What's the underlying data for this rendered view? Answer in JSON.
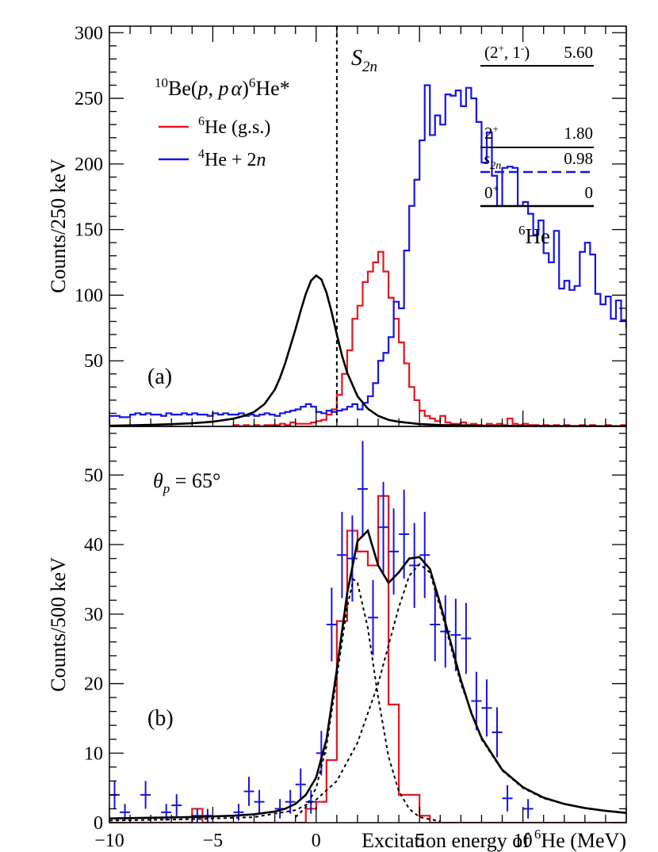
{
  "chart_data": [
    {
      "panel": "a",
      "type": "line",
      "panel_label": "(a)",
      "title": "",
      "reaction": {
        "pre": "10",
        "base1": "Be(",
        "p1": "p",
        "comma": ", ",
        "p2": "p",
        "alpha": "α",
        "close": ")",
        "sup6": "6",
        "tail": "He*"
      },
      "xlabel": "",
      "ylabel": "Counts/250 keV",
      "xlim": [
        -10,
        15
      ],
      "ylim": [
        0,
        305
      ],
      "y_ticks": [
        50,
        100,
        150,
        200,
        250,
        300
      ],
      "threshold": {
        "x": 1.0,
        "label_main": "S",
        "label_sub": "2n"
      },
      "legend": [
        {
          "sup": "6",
          "main": "He (g.s.)",
          "em": "",
          "color": "#e8141c"
        },
        {
          "sup": "4",
          "main": "He + 2",
          "em": "n",
          "color": "#1414e6"
        }
      ],
      "series": [
        {
          "name": "6He (g.s.)",
          "style": "step",
          "color": "#e8141c",
          "bin_width": 0.25,
          "x_start": -4.0,
          "values": [
            1,
            0,
            1,
            0,
            1,
            0,
            1,
            1,
            1,
            2,
            1,
            3,
            2,
            2,
            2,
            3,
            4,
            5,
            9,
            13,
            24,
            40,
            58,
            82,
            92,
            110,
            118,
            125,
            133,
            118,
            98,
            82,
            64,
            48,
            30,
            20,
            12,
            8,
            6,
            4,
            8,
            3,
            2,
            2,
            3,
            1,
            2,
            1,
            0,
            2,
            1,
            2,
            1,
            6,
            2,
            1,
            2,
            1,
            1,
            0,
            1,
            0,
            1,
            0,
            1,
            0,
            0,
            1,
            0,
            1,
            0,
            0,
            1,
            0,
            0,
            1,
            0
          ]
        },
        {
          "name": "4He + 2n",
          "style": "step",
          "color": "#1414e6",
          "bin_width": 0.25,
          "x_start": -10.0,
          "values": [
            8,
            8,
            7,
            7,
            9,
            10,
            9,
            10,
            9,
            9,
            8,
            10,
            9,
            9,
            10,
            9,
            10,
            9,
            9,
            8,
            10,
            9,
            10,
            9,
            9,
            10,
            8,
            9,
            8,
            9,
            10,
            9,
            8,
            10,
            11,
            12,
            13,
            15,
            17,
            15,
            11,
            10,
            12,
            11,
            12,
            13,
            15,
            17,
            13,
            18,
            23,
            33,
            50,
            56,
            68,
            95,
            90,
            134,
            168,
            188,
            218,
            260,
            222,
            237,
            230,
            253,
            252,
            256,
            244,
            258,
            250,
            232,
            201,
            224,
            191,
            168,
            197,
            198,
            197,
            168,
            171,
            162,
            146,
            157,
            132,
            125,
            149,
            105,
            111,
            104,
            107,
            133,
            140,
            131,
            101,
            93,
            99,
            82,
            96,
            81,
            75,
            66,
            65,
            60,
            62,
            62,
            61,
            58,
            55,
            60,
            54,
            68,
            55,
            55,
            50,
            48,
            46,
            42,
            42,
            40,
            42,
            47,
            45,
            33,
            40,
            32,
            35,
            28,
            30,
            27,
            25,
            25,
            28,
            18,
            15,
            18
          ]
        },
        {
          "name": "fit",
          "style": "line",
          "color": "#000000",
          "x": [
            -10,
            -9,
            -8,
            -7,
            -6,
            -5,
            -4,
            -3.5,
            -3,
            -2.5,
            -2,
            -1.75,
            -1.5,
            -1.25,
            -1,
            -0.75,
            -0.5,
            -0.25,
            0,
            0.25,
            0.5,
            0.75,
            1,
            1.25,
            1.5,
            2,
            2.5,
            3,
            3.5,
            4,
            5,
            6,
            8,
            10,
            12,
            15
          ],
          "y": [
            0.5,
            0.8,
            1.2,
            1.7,
            2.4,
            3.6,
            5.9,
            8.0,
            11.0,
            17.0,
            28.0,
            37.0,
            48.0,
            61.0,
            74.0,
            88.0,
            101.0,
            111.0,
            115.0,
            112.0,
            102.0,
            87.0,
            70.0,
            54.0,
            41.0,
            23.0,
            13.5,
            8.0,
            5.0,
            3.5,
            1.8,
            1.0,
            0.5,
            0.3,
            0.2,
            0.1
          ]
        }
      ],
      "level_scheme": {
        "nucleus_sup": "6",
        "nucleus_main": "He",
        "levels": [
          {
            "jpi_main": "(2",
            "jpi_sup1": "+",
            "jpi_mid": ", 1",
            "jpi_sup2": "-",
            "jpi_close": ")",
            "energy": "5.60",
            "style": "solid",
            "color": "#000000"
          },
          {
            "jpi_main": "2",
            "jpi_sup1": "+",
            "jpi_mid": "",
            "jpi_sup2": "",
            "jpi_close": "",
            "energy": "1.80",
            "style": "solid",
            "color": "#000000"
          },
          {
            "jpi_main": "s",
            "jpi_sup1": "2n",
            "jpi_mid": "",
            "jpi_sup2": "",
            "jpi_close": "",
            "energy": "0.98",
            "style": "dashed",
            "color": "#1414e6"
          },
          {
            "jpi_main": "0",
            "jpi_sup1": "+",
            "jpi_mid": "",
            "jpi_sup2": "",
            "jpi_close": "",
            "energy": "0",
            "style": "solid",
            "color": "#000000"
          }
        ]
      }
    },
    {
      "panel": "b",
      "type": "line",
      "panel_label": "(b)",
      "angle_label": {
        "theta": "θ",
        "sub": "p",
        "value": " = 65°"
      },
      "title": "",
      "xlabel": "Excitation energy of",
      "xlabel_sup": "6",
      "xlabel_tail": "He (MeV)",
      "ylabel": "Counts/500 keV",
      "xlim": [
        -10,
        15
      ],
      "ylim": [
        0,
        57
      ],
      "x_ticks": [
        -10,
        -5,
        0,
        5,
        10
      ],
      "x_tick_labels": [
        "−10",
        "−5",
        "0",
        "5",
        "10"
      ],
      "y_ticks": [
        0,
        10,
        20,
        30,
        40,
        50
      ],
      "series": [
        {
          "name": "6He (g.s.)",
          "style": "step",
          "color": "#e8141c",
          "bin_width": 0.5,
          "x_start": -10.0,
          "values": [
            0,
            0,
            0,
            0,
            0,
            0,
            0,
            0,
            2,
            0,
            0,
            0,
            0,
            0,
            0,
            0,
            0,
            0,
            0,
            2,
            3,
            9,
            29,
            42,
            39,
            37,
            47,
            17,
            4,
            4,
            1,
            0,
            0,
            0,
            0,
            0,
            0,
            0,
            0,
            0,
            0,
            0,
            0,
            0,
            0,
            0,
            0,
            0,
            0,
            0
          ]
        },
        {
          "name": "4He + 2n",
          "style": "points",
          "color": "#1414e6",
          "x": [
            -9.75,
            -9.25,
            -8.25,
            -7.25,
            -6.75,
            -5.75,
            -5.25,
            -3.75,
            -3.25,
            -2.75,
            -1.75,
            -1.25,
            -0.75,
            -0.25,
            0.25,
            0.75,
            1.25,
            1.75,
            2.25,
            2.75,
            3.25,
            3.75,
            4.25,
            4.75,
            5.25,
            5.75,
            6.25,
            6.75,
            7.25,
            7.75,
            8.25,
            8.75,
            9.25,
            10.25
          ],
          "y": [
            4,
            1.5,
            4,
            1.5,
            2.5,
            1,
            1,
            1.5,
            4.5,
            3,
            2,
            3,
            5.5,
            3,
            10,
            28.5,
            38.5,
            38,
            48,
            29.5,
            42.5,
            39,
            41.5,
            37,
            38.5,
            28.5,
            27.5,
            27,
            26.5,
            17.5,
            16.5,
            13,
            3.5,
            2
          ],
          "err": [
            2,
            1.2,
            2,
            1.2,
            1.6,
            1,
            1,
            1.2,
            2.1,
            1.7,
            1.4,
            1.7,
            2.3,
            1.7,
            3.2,
            5.3,
            6.2,
            6.2,
            6.9,
            5.4,
            6.5,
            6.2,
            6.4,
            6.1,
            6.2,
            5.3,
            5.2,
            5.2,
            5.1,
            4.2,
            4.1,
            3.6,
            1.9,
            1.4
          ]
        },
        {
          "name": "total fit",
          "style": "line",
          "color": "#000000",
          "x": [
            -10,
            -8,
            -6,
            -4,
            -3,
            -2,
            -1.5,
            -1,
            -0.5,
            0,
            0.5,
            1,
            1.5,
            2,
            2.5,
            3,
            3.5,
            4,
            4.5,
            5,
            5.5,
            6,
            6.5,
            7,
            7.5,
            8,
            9,
            10,
            11,
            12,
            13,
            14,
            15
          ],
          "y": [
            0.6,
            0.7,
            0.8,
            1.0,
            1.2,
            1.6,
            2.0,
            2.7,
            4.0,
            6.5,
            12.0,
            22.0,
            33.0,
            40.5,
            42.0,
            37.0,
            34.5,
            36.0,
            38.0,
            38.2,
            36.5,
            31.5,
            26.0,
            20.5,
            15.8,
            12.2,
            7.6,
            5.1,
            3.6,
            2.7,
            2.1,
            1.7,
            1.4
          ]
        },
        {
          "name": "component 1",
          "style": "dotted",
          "color": "#000000",
          "x": [
            -1,
            -0.5,
            0,
            0.5,
            1,
            1.5,
            1.8,
            2,
            2.5,
            3,
            3.5,
            4,
            4.5,
            5,
            6
          ],
          "y": [
            0.8,
            2.2,
            5.0,
            11.0,
            21.0,
            31.0,
            35.0,
            34.5,
            28.0,
            18.0,
            9.5,
            4.5,
            2.0,
            0.8,
            0.2
          ],
          "fill_to": 0
        },
        {
          "name": "component 2",
          "style": "dotted",
          "color": "#000000",
          "x": [
            -10,
            -6,
            -3,
            -1,
            0,
            1,
            2,
            3,
            4,
            4.5,
            5,
            5.5,
            6,
            7,
            8,
            9,
            10,
            11,
            12,
            13,
            14,
            15
          ],
          "y": [
            0.3,
            0.5,
            0.8,
            1.8,
            3.3,
            6.0,
            11.5,
            20.0,
            31.0,
            35.5,
            37.2,
            36.0,
            31.0,
            20.0,
            12.0,
            7.5,
            5.0,
            3.5,
            2.7,
            2.1,
            1.7,
            1.4
          ]
        }
      ]
    }
  ]
}
